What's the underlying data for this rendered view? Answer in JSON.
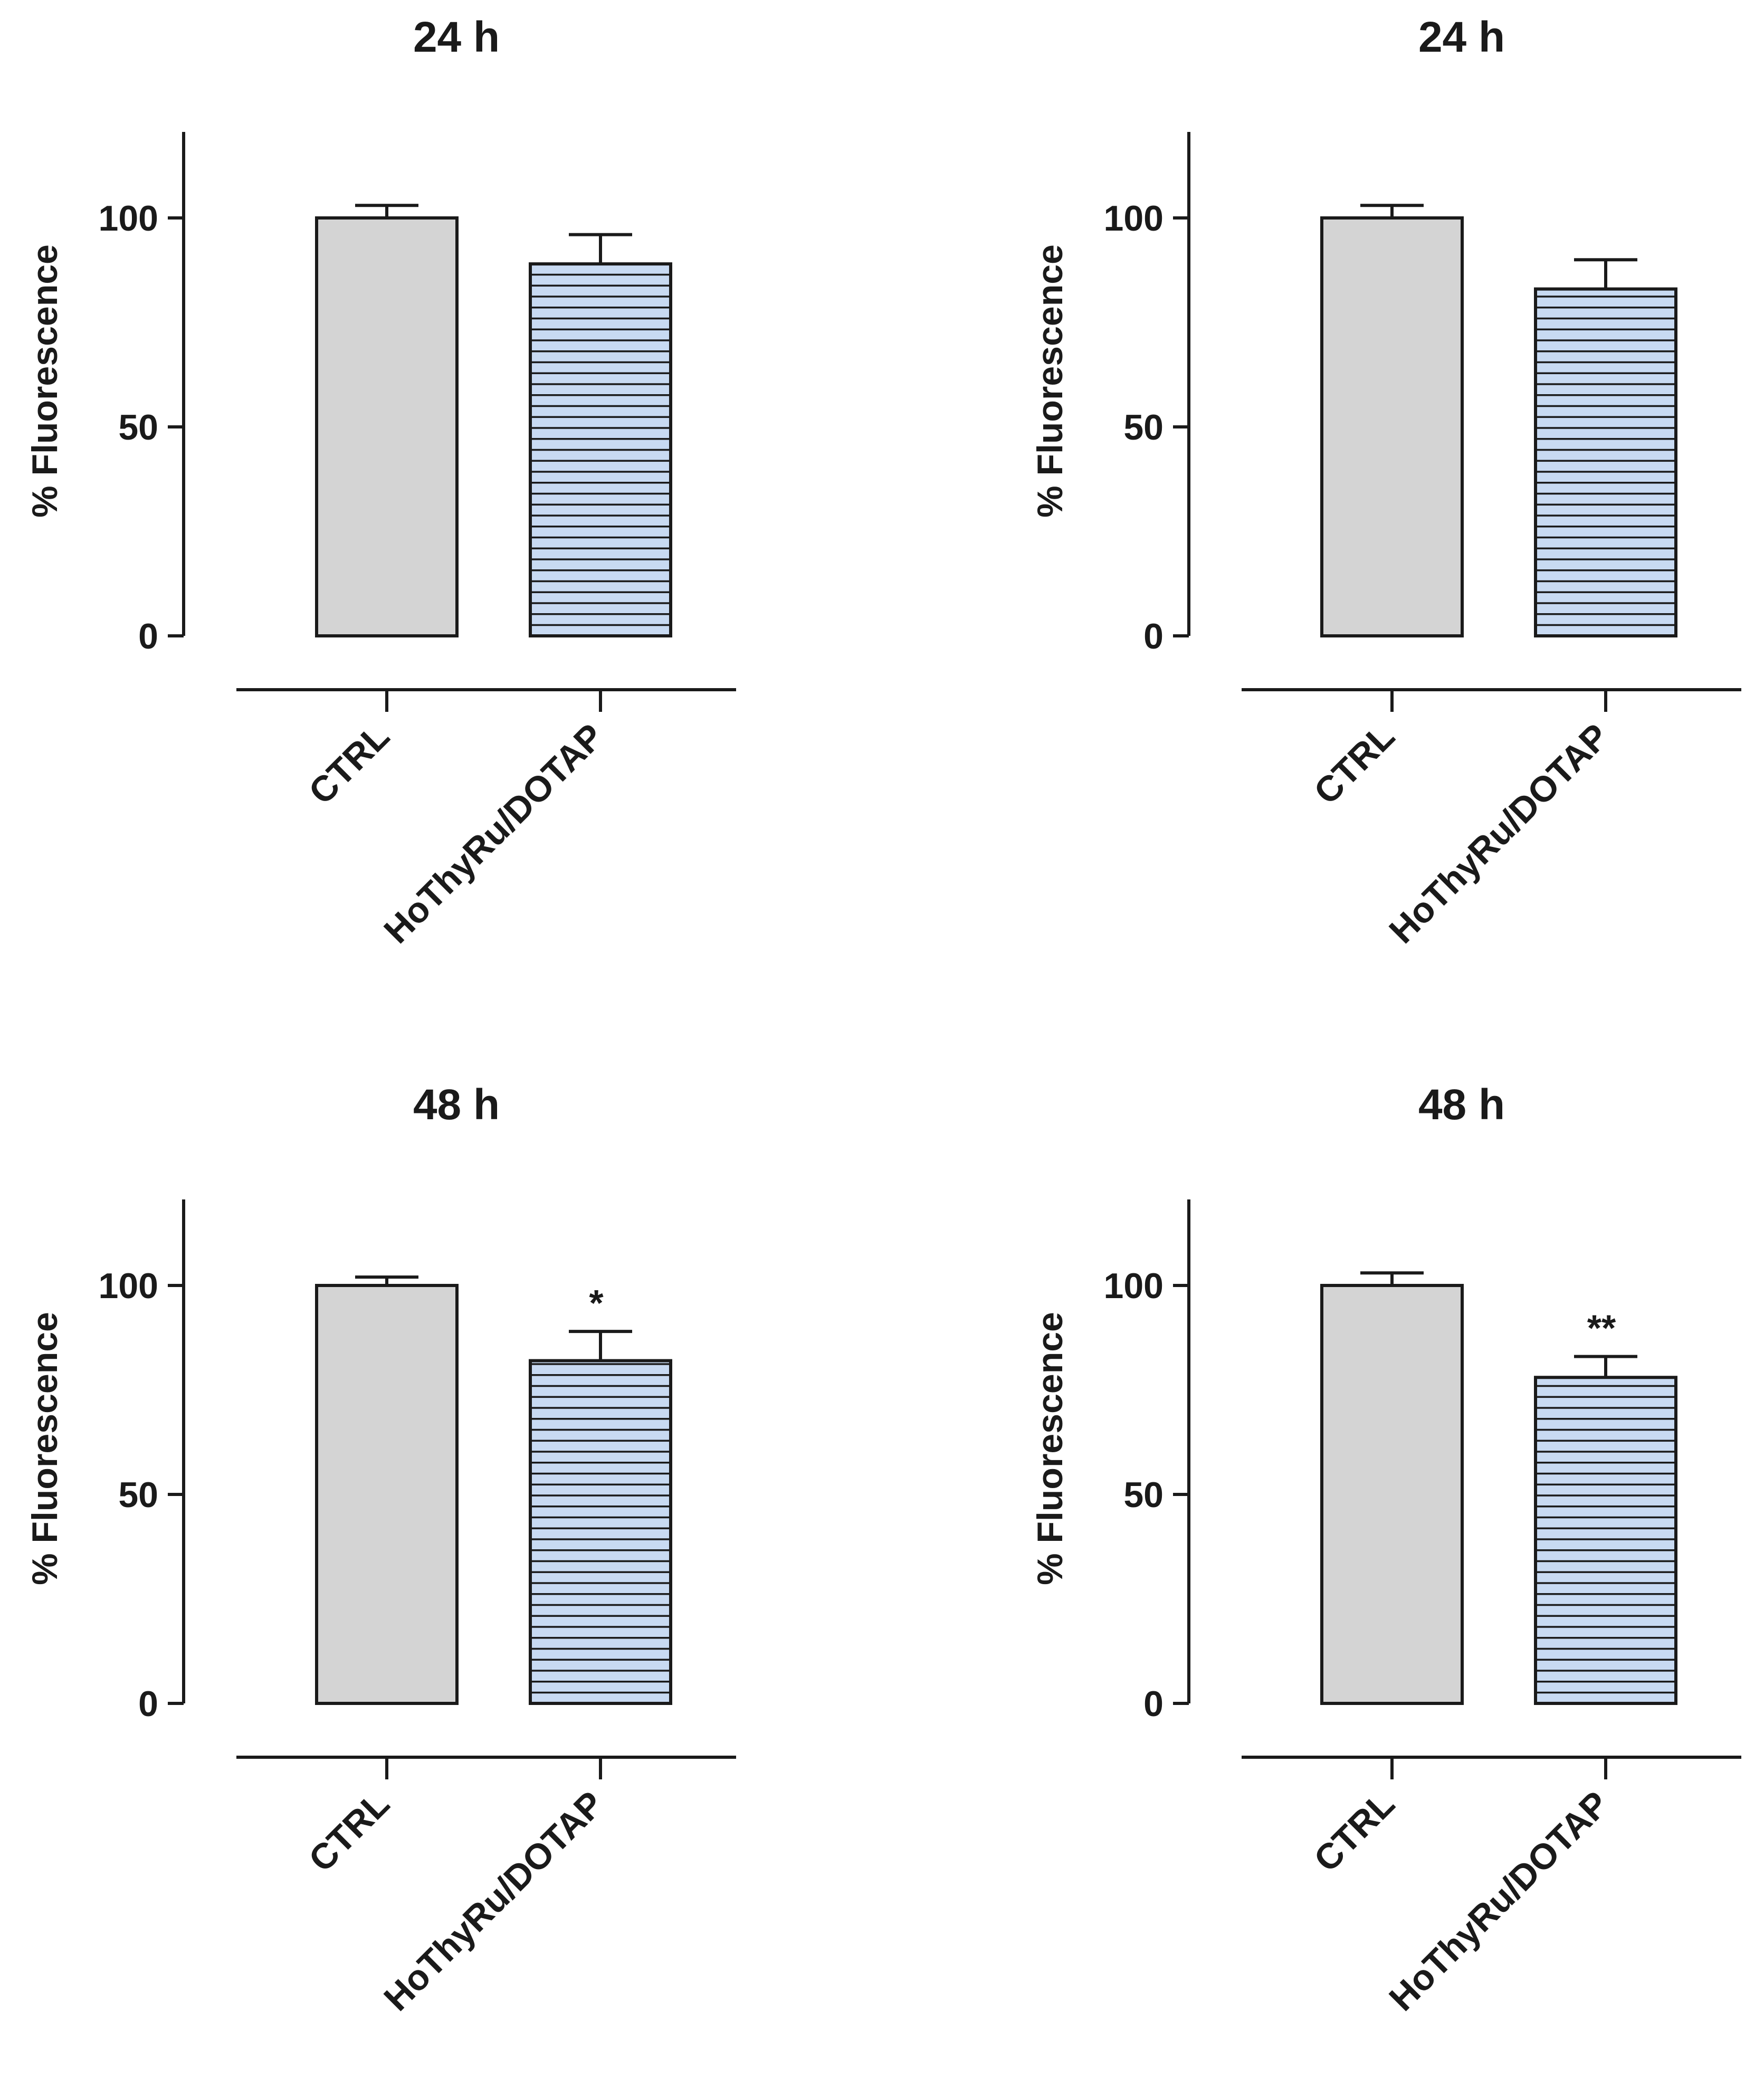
{
  "colors": {
    "ctrl_fill": "#d4d4d4",
    "treat_fill": "#c8daf2",
    "stripe": "#1a1a1a",
    "axis": "#1a1a1a"
  },
  "chart_data": [
    {
      "type": "bar",
      "title": "24 h",
      "ylabel": "% Fluorescence",
      "xlabel": "",
      "ylim": [
        0,
        120
      ],
      "yticks": [
        0,
        50,
        100
      ],
      "ytick_labels": [
        "0",
        "50",
        "100"
      ],
      "categories": [
        "CTRL",
        "HoThyRu/DOTAP"
      ],
      "values": [
        100,
        89
      ],
      "errors": [
        3,
        7
      ],
      "significance": [
        "",
        ""
      ]
    },
    {
      "type": "bar",
      "title": "24 h",
      "ylabel": "% Fluorescence",
      "xlabel": "",
      "ylim": [
        0,
        120
      ],
      "yticks": [
        0,
        50,
        100
      ],
      "ytick_labels": [
        "0",
        "50",
        "100"
      ],
      "categories": [
        "CTRL",
        "HoThyRu/DOTAP"
      ],
      "values": [
        100,
        83
      ],
      "errors": [
        3,
        7
      ],
      "significance": [
        "",
        ""
      ]
    },
    {
      "type": "bar",
      "title": "48 h",
      "ylabel": "% Fluorescence",
      "xlabel": "",
      "ylim": [
        0,
        120
      ],
      "yticks": [
        0,
        50,
        100
      ],
      "ytick_labels": [
        "0",
        "50",
        "100"
      ],
      "categories": [
        "CTRL",
        "HoThyRu/DOTAP"
      ],
      "values": [
        100,
        82
      ],
      "errors": [
        2,
        7
      ],
      "significance": [
        "",
        "*"
      ]
    },
    {
      "type": "bar",
      "title": "48 h",
      "ylabel": "% Fluorescence",
      "xlabel": "",
      "ylim": [
        0,
        120
      ],
      "yticks": [
        0,
        50,
        100
      ],
      "ytick_labels": [
        "0",
        "50",
        "100"
      ],
      "categories": [
        "CTRL",
        "HoThyRu/DOTAP"
      ],
      "values": [
        100,
        78
      ],
      "errors": [
        3,
        5
      ],
      "significance": [
        "",
        "**"
      ]
    }
  ]
}
